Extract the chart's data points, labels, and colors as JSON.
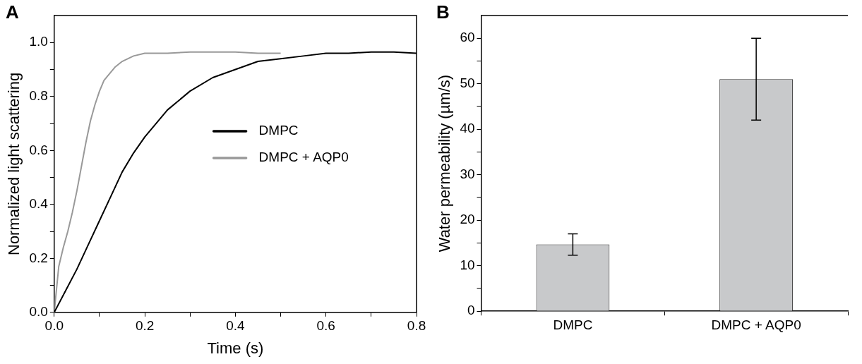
{
  "chart_data": [
    {
      "type": "line",
      "title": "A",
      "xlabel": "Time (s)",
      "ylabel": "Normalized light scattering",
      "legend": "right",
      "grid": false,
      "marker": "none",
      "line_style": "solid",
      "xlim": [
        0,
        0.8
      ],
      "ylim": [
        0,
        1.1
      ],
      "xticks": [
        {
          "value": 0,
          "label": "0.0"
        },
        {
          "value": 0.1,
          "label": null
        },
        0.2,
        {
          "value": 0.3,
          "label": null
        },
        0.4,
        {
          "value": 0.5,
          "label": null
        },
        0.6,
        {
          "value": 0.7,
          "label": null
        },
        0.8
      ],
      "yticks": [
        {
          "value": 0,
          "label": "0.0"
        },
        {
          "value": 0.1,
          "label": null
        },
        0.2,
        {
          "value": 0.3,
          "label": null
        },
        0.4,
        {
          "value": 0.5,
          "label": null
        },
        0.6,
        {
          "value": 0.7,
          "label": null
        },
        0.8,
        {
          "value": 0.9,
          "label": null
        },
        {
          "value": 1,
          "label": "1.0"
        }
      ],
      "series": [
        {
          "name": "DMPC",
          "color": "#000000",
          "x": [
            0,
            0.025,
            0.05,
            0.075,
            0.1,
            0.125,
            0.15,
            0.175,
            0.2,
            0.25,
            0.3,
            0.35,
            0.4,
            0.45,
            0.5,
            0.55,
            0.6,
            0.65,
            0.7,
            0.75,
            0.8
          ],
          "values": [
            0,
            0.08,
            0.16,
            0.25,
            0.34,
            0.43,
            0.52,
            0.59,
            0.65,
            0.75,
            0.82,
            0.87,
            0.9,
            0.93,
            0.94,
            0.95,
            0.96,
            0.96,
            0.965,
            0.965,
            0.96
          ]
        },
        {
          "name": "DMPC + AQP0",
          "color": "#999999",
          "x": [
            0,
            0.01,
            0.02,
            0.03,
            0.04,
            0.05,
            0.06,
            0.07,
            0.08,
            0.09,
            0.1,
            0.11,
            0.12,
            0.135,
            0.15,
            0.175,
            0.2,
            0.25,
            0.3,
            0.35,
            0.4,
            0.45,
            0.5
          ],
          "values": [
            0,
            0.17,
            0.24,
            0.3,
            0.37,
            0.45,
            0.54,
            0.63,
            0.71,
            0.77,
            0.82,
            0.86,
            0.88,
            0.91,
            0.93,
            0.95,
            0.96,
            0.96,
            0.965,
            0.965,
            0.965,
            0.96,
            0.96
          ]
        }
      ]
    },
    {
      "type": "bar",
      "title": "B",
      "ylabel": "Water permeability (µm/s)",
      "grid": false,
      "categories": [
        "DMPC",
        "DMPC + AQP0"
      ],
      "values": [
        14.7,
        51
      ],
      "errors": [
        [
          12.3,
          17
        ],
        [
          42,
          60
        ]
      ],
      "color": "#c8c9cb",
      "ylim": [
        0,
        65
      ],
      "yticks": [
        0,
        {
          "value": 5,
          "label": null
        },
        10,
        {
          "value": 15,
          "label": null
        },
        20,
        {
          "value": 25,
          "label": null
        },
        30,
        {
          "value": 35,
          "label": null
        },
        40,
        {
          "value": 45,
          "label": null
        },
        50,
        {
          "value": 55,
          "label": null
        },
        60
      ]
    }
  ]
}
